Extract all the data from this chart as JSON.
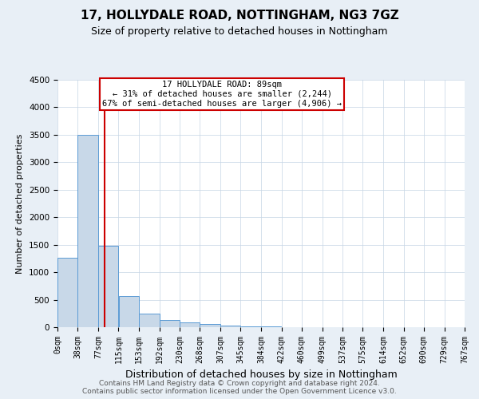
{
  "title": "17, HOLLYDALE ROAD, NOTTINGHAM, NG3 7GZ",
  "subtitle": "Size of property relative to detached houses in Nottingham",
  "xlabel": "Distribution of detached houses by size in Nottingham",
  "ylabel": "Number of detached properties",
  "property_label": "17 HOLLYDALE ROAD: 89sqm",
  "annotation_line1": "← 31% of detached houses are smaller (2,244)",
  "annotation_line2": "67% of semi-detached houses are larger (4,906) →",
  "bar_edges": [
    0,
    38,
    77,
    115,
    153,
    192,
    230,
    268,
    307,
    345,
    384,
    422,
    460,
    499,
    537,
    575,
    614,
    652,
    690,
    729,
    767
  ],
  "bar_heights": [
    1270,
    3500,
    1480,
    570,
    240,
    125,
    80,
    55,
    35,
    20,
    10,
    5,
    3,
    2,
    1,
    1,
    1,
    0,
    0,
    0
  ],
  "bar_color": "#c8d8e8",
  "bar_edge_color": "#5b9bd5",
  "vline_x": 89,
  "vline_color": "#cc0000",
  "annotation_box_color": "#cc0000",
  "ylim": [
    0,
    4500
  ],
  "yticks": [
    0,
    500,
    1000,
    1500,
    2000,
    2500,
    3000,
    3500,
    4000,
    4500
  ],
  "background_color": "#e8eff6",
  "plot_bg_color": "#ffffff",
  "grid_color": "#c5d5e5",
  "footer_line1": "Contains HM Land Registry data © Crown copyright and database right 2024.",
  "footer_line2": "Contains public sector information licensed under the Open Government Licence v3.0.",
  "title_fontsize": 11,
  "subtitle_fontsize": 9,
  "ylabel_fontsize": 8,
  "xlabel_fontsize": 9,
  "tick_fontsize": 7,
  "footer_fontsize": 6.5
}
